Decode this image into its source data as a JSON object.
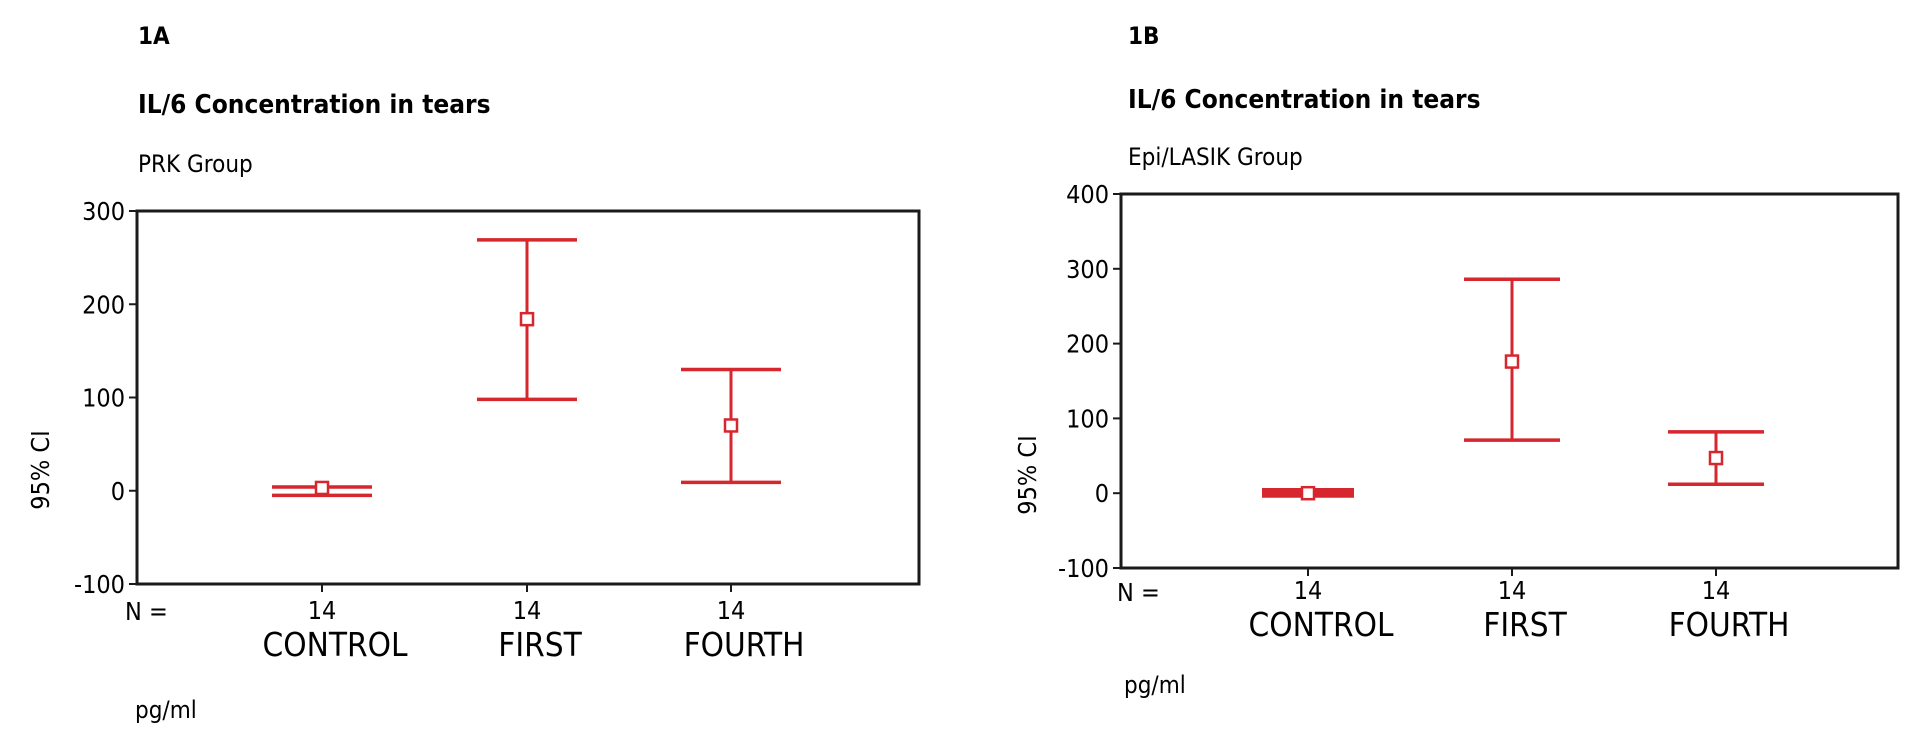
{
  "chart_data": [
    {
      "panel_label": "1A",
      "type": "errorbar",
      "title": "IL/6 Concentration in tears",
      "subtitle": "PRK Group",
      "ylabel": "95% CI",
      "unit": "pg/ml",
      "n_label": "N =",
      "ylim": [
        -100,
        300
      ],
      "yticks": [
        -100,
        0,
        100,
        200,
        300
      ],
      "categories": [
        "CONTROL",
        "FIRST",
        "FOURTH"
      ],
      "n": [
        "14",
        "14",
        "14"
      ],
      "mean": [
        3,
        184,
        70
      ],
      "lower": [
        -5,
        98,
        9
      ],
      "upper": [
        4,
        269,
        130
      ],
      "color": "#d6262e"
    },
    {
      "panel_label": "1B",
      "type": "errorbar",
      "title": "IL/6 Concentration in tears",
      "subtitle": "Epi/LASIK Group",
      "ylabel": "95% CI",
      "unit": "pg/ml",
      "n_label": "N =",
      "ylim": [
        -100,
        400
      ],
      "yticks": [
        -100,
        0,
        100,
        200,
        300,
        400
      ],
      "categories": [
        "CONTROL",
        "FIRST",
        "FOURTH"
      ],
      "n": [
        "14",
        "14",
        "14"
      ],
      "mean": [
        0,
        176,
        47
      ],
      "lower": [
        -2,
        71,
        12
      ],
      "upper": [
        3,
        286,
        82
      ],
      "color": "#d6262e"
    }
  ]
}
